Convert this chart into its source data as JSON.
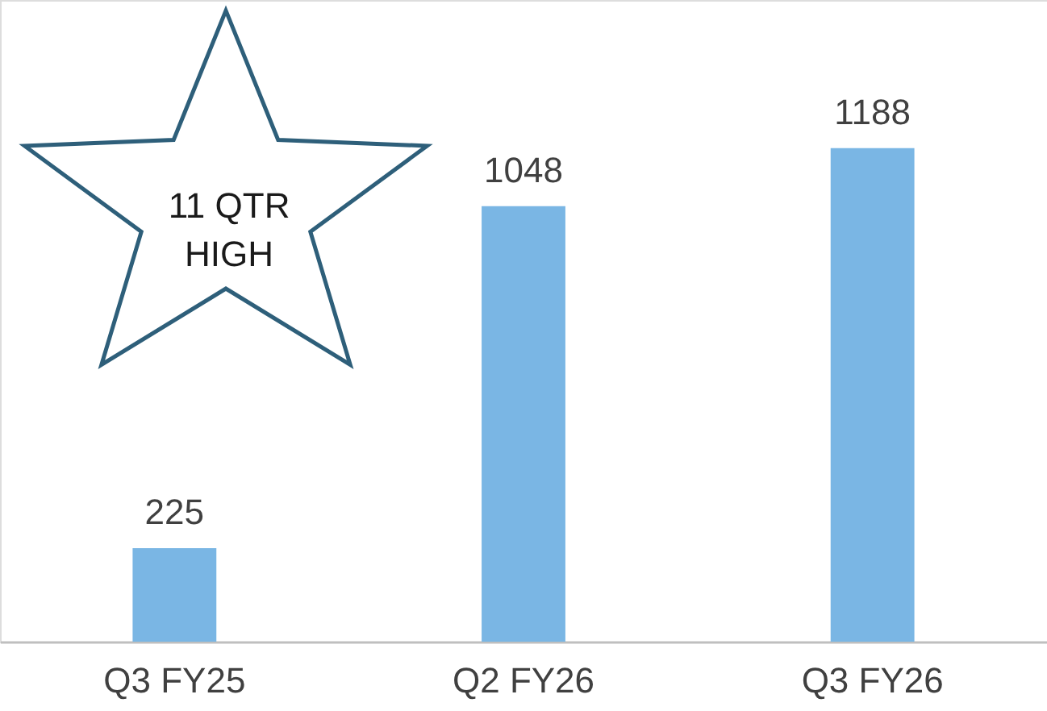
{
  "chart_data": {
    "type": "bar",
    "categories": [
      "Q3 FY25",
      "Q2 FY26",
      "Q3 FY26"
    ],
    "values": [
      225,
      1048,
      1188
    ],
    "color": "#7ab6e4",
    "data_labels": true,
    "annotations": [
      "11 QTR HIGH"
    ]
  }
}
